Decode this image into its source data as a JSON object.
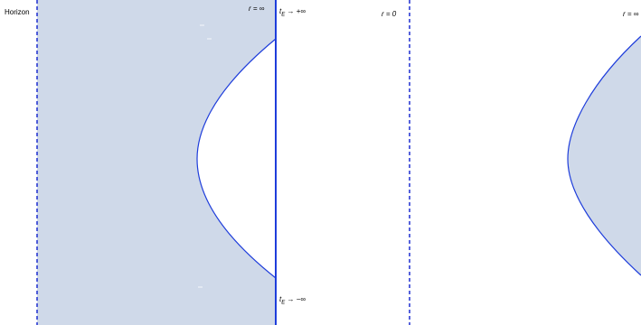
{
  "colors": {
    "fill": "#cfd9e9",
    "stroke": "#1e3ddb",
    "dash": "#1e2fd0"
  },
  "left_panel": {
    "horizon_label": "Horizon",
    "r_infinity_label": "r = ∞",
    "tE_plus_label": "t",
    "tE_plus_sub": "E",
    "tE_plus_tail": " → +∞",
    "tE_minus_label": "t",
    "tE_minus_sub": "E",
    "tE_minus_tail": " → −∞"
  },
  "right_panel": {
    "r_zero_label": "r = 0",
    "r_infinity_label": "r = ∞"
  }
}
